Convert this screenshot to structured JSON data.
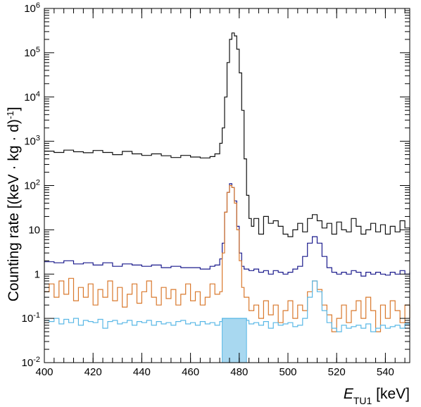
{
  "chart_data": {
    "type": "line",
    "style": "step-histogram",
    "ylabel": "Counting rate [(keV · kg · d)",
    "ylabel_exponent": "-1",
    "ylabel_close": "]",
    "xlabel_symbol": "E",
    "xlabel_subscript": "TU1",
    "xlabel_unit": " [keV]",
    "xlim": [
      400,
      550
    ],
    "ylim": [
      0.01,
      1000000
    ],
    "yscale": "log",
    "x_ticks": [
      {
        "value": 400,
        "label": "400"
      },
      {
        "value": 420,
        "label": "420"
      },
      {
        "value": 440,
        "label": "440"
      },
      {
        "value": 460,
        "label": "460"
      },
      {
        "value": 480,
        "label": "480"
      },
      {
        "value": 500,
        "label": "500"
      },
      {
        "value": 520,
        "label": "520"
      },
      {
        "value": 540,
        "label": "540"
      }
    ],
    "y_ticks": [
      {
        "value": 0.01,
        "base": "10",
        "exp": "-2"
      },
      {
        "value": 0.1,
        "base": "10",
        "exp": "-1"
      },
      {
        "value": 1,
        "base": "1",
        "exp": ""
      },
      {
        "value": 10,
        "base": "10",
        "exp": ""
      },
      {
        "value": 100,
        "base": "10",
        "exp": "2"
      },
      {
        "value": 1000,
        "base": "10",
        "exp": "3"
      },
      {
        "value": 10000,
        "base": "10",
        "exp": "4"
      },
      {
        "value": 100000,
        "base": "10",
        "exp": "5"
      },
      {
        "value": 1000000,
        "base": "10",
        "exp": "6"
      }
    ],
    "highlight_band": {
      "x_range": [
        473,
        483
      ],
      "y_value": 0.1,
      "color": "#a8d8f0"
    },
    "series": [
      {
        "color": "#111111",
        "points": [
          [
            400,
            600
          ],
          [
            404,
            560
          ],
          [
            408,
            630
          ],
          [
            412,
            580
          ],
          [
            416,
            550
          ],
          [
            420,
            620
          ],
          [
            424,
            560
          ],
          [
            428,
            500
          ],
          [
            432,
            590
          ],
          [
            436,
            520
          ],
          [
            440,
            480
          ],
          [
            444,
            520
          ],
          [
            448,
            470
          ],
          [
            452,
            430
          ],
          [
            456,
            480
          ],
          [
            460,
            440
          ],
          [
            464,
            420
          ],
          [
            468,
            450
          ],
          [
            470,
            520
          ],
          [
            472,
            900
          ],
          [
            473,
            2000
          ],
          [
            474,
            10000
          ],
          [
            475,
            60000
          ],
          [
            476,
            200000
          ],
          [
            477,
            280000
          ],
          [
            478,
            240000
          ],
          [
            479,
            120000
          ],
          [
            480,
            35000
          ],
          [
            481,
            5000
          ],
          [
            482,
            400
          ],
          [
            483,
            60
          ],
          [
            484,
            18
          ],
          [
            485,
            12
          ],
          [
            486,
            18
          ],
          [
            488,
            8
          ],
          [
            490,
            20
          ],
          [
            492,
            14
          ],
          [
            494,
            16
          ],
          [
            496,
            12
          ],
          [
            498,
            8
          ],
          [
            500,
            7
          ],
          [
            502,
            10
          ],
          [
            504,
            14
          ],
          [
            506,
            9
          ],
          [
            508,
            18
          ],
          [
            510,
            22
          ],
          [
            512,
            16
          ],
          [
            514,
            11
          ],
          [
            516,
            14
          ],
          [
            518,
            8
          ],
          [
            520,
            15
          ],
          [
            522,
            10
          ],
          [
            524,
            9
          ],
          [
            526,
            18
          ],
          [
            528,
            12
          ],
          [
            530,
            8
          ],
          [
            532,
            10
          ],
          [
            534,
            14
          ],
          [
            536,
            9
          ],
          [
            538,
            13
          ],
          [
            540,
            8
          ],
          [
            542,
            12
          ],
          [
            544,
            9
          ],
          [
            546,
            16
          ],
          [
            548,
            11
          ],
          [
            550,
            10
          ]
        ]
      },
      {
        "color": "#1a1a8c",
        "points": [
          [
            400,
            1.9
          ],
          [
            404,
            1.8
          ],
          [
            408,
            2.0
          ],
          [
            412,
            1.7
          ],
          [
            416,
            1.8
          ],
          [
            420,
            1.6
          ],
          [
            424,
            1.8
          ],
          [
            428,
            1.5
          ],
          [
            432,
            1.7
          ],
          [
            436,
            1.6
          ],
          [
            440,
            1.5
          ],
          [
            444,
            1.6
          ],
          [
            448,
            1.4
          ],
          [
            452,
            1.5
          ],
          [
            456,
            1.4
          ],
          [
            460,
            1.4
          ],
          [
            464,
            1.3
          ],
          [
            468,
            1.5
          ],
          [
            470,
            1.6
          ],
          [
            472,
            2.2
          ],
          [
            473,
            5
          ],
          [
            474,
            25
          ],
          [
            475,
            70
          ],
          [
            476,
            110
          ],
          [
            477,
            90
          ],
          [
            478,
            45
          ],
          [
            479,
            12
          ],
          [
            480,
            3
          ],
          [
            481,
            1.5
          ],
          [
            482,
            1.3
          ],
          [
            484,
            1.2
          ],
          [
            486,
            1.3
          ],
          [
            488,
            1.1
          ],
          [
            490,
            1.2
          ],
          [
            492,
            1.0
          ],
          [
            494,
            1.2
          ],
          [
            496,
            1.1
          ],
          [
            498,
            1.0
          ],
          [
            500,
            1.1
          ],
          [
            502,
            1.3
          ],
          [
            504,
            1.5
          ],
          [
            506,
            2.5
          ],
          [
            508,
            5
          ],
          [
            510,
            7
          ],
          [
            512,
            5
          ],
          [
            514,
            2.5
          ],
          [
            516,
            1.4
          ],
          [
            518,
            1.1
          ],
          [
            520,
            1.0
          ],
          [
            522,
            1.1
          ],
          [
            524,
            1.0
          ],
          [
            526,
            1.2
          ],
          [
            528,
            1.1
          ],
          [
            530,
            0.9
          ],
          [
            532,
            1.1
          ],
          [
            534,
            1.0
          ],
          [
            536,
            1.1
          ],
          [
            538,
            1.0
          ],
          [
            540,
            0.95
          ],
          [
            542,
            1.1
          ],
          [
            544,
            1.0
          ],
          [
            546,
            1.2
          ],
          [
            548,
            1.0
          ],
          [
            550,
            1.1
          ]
        ]
      },
      {
        "color": "#d9782c",
        "points": [
          [
            400,
            0.4
          ],
          [
            402,
            0.6
          ],
          [
            404,
            0.3
          ],
          [
            406,
            0.7
          ],
          [
            408,
            0.35
          ],
          [
            410,
            0.8
          ],
          [
            412,
            0.25
          ],
          [
            414,
            0.5
          ],
          [
            416,
            0.3
          ],
          [
            418,
            0.6
          ],
          [
            420,
            0.2
          ],
          [
            422,
            0.45
          ],
          [
            424,
            0.3
          ],
          [
            426,
            0.7
          ],
          [
            428,
            0.25
          ],
          [
            430,
            0.5
          ],
          [
            432,
            0.18
          ],
          [
            434,
            0.35
          ],
          [
            436,
            0.6
          ],
          [
            438,
            0.22
          ],
          [
            440,
            0.4
          ],
          [
            442,
            0.7
          ],
          [
            444,
            0.3
          ],
          [
            446,
            0.2
          ],
          [
            448,
            0.5
          ],
          [
            450,
            0.28
          ],
          [
            452,
            0.45
          ],
          [
            454,
            0.2
          ],
          [
            456,
            0.35
          ],
          [
            458,
            0.6
          ],
          [
            460,
            0.25
          ],
          [
            462,
            0.4
          ],
          [
            464,
            0.2
          ],
          [
            466,
            0.3
          ],
          [
            468,
            0.6
          ],
          [
            470,
            0.35
          ],
          [
            472,
            0.4
          ],
          [
            473,
            3
          ],
          [
            474,
            25
          ],
          [
            475,
            70
          ],
          [
            476,
            100
          ],
          [
            477,
            90
          ],
          [
            478,
            40
          ],
          [
            479,
            10
          ],
          [
            480,
            2
          ],
          [
            481,
            0.5
          ],
          [
            482,
            0.3
          ],
          [
            484,
            0.15
          ],
          [
            486,
            0.2
          ],
          [
            488,
            0.1
          ],
          [
            490,
            0.25
          ],
          [
            492,
            0.12
          ],
          [
            494,
            0.2
          ],
          [
            496,
            0.08
          ],
          [
            498,
            0.15
          ],
          [
            500,
            0.25
          ],
          [
            502,
            0.1
          ],
          [
            504,
            0.2
          ],
          [
            506,
            0.15
          ],
          [
            508,
            0.4
          ],
          [
            510,
            0.7
          ],
          [
            512,
            0.45
          ],
          [
            514,
            0.2
          ],
          [
            516,
            0.12
          ],
          [
            518,
            0.05
          ],
          [
            520,
            0.1
          ],
          [
            522,
            0.2
          ],
          [
            524,
            0.08
          ],
          [
            526,
            0.15
          ],
          [
            528,
            0.25
          ],
          [
            530,
            0.1
          ],
          [
            532,
            0.3
          ],
          [
            534,
            0.15
          ],
          [
            536,
            0.05
          ],
          [
            538,
            0.2
          ],
          [
            540,
            0.1
          ],
          [
            542,
            0.25
          ],
          [
            544,
            0.15
          ],
          [
            546,
            0.08
          ],
          [
            548,
            0.2
          ],
          [
            550,
            0.1
          ]
        ]
      },
      {
        "color": "#5ab8e6",
        "points": [
          [
            400,
            0.09
          ],
          [
            402,
            0.085
          ],
          [
            404,
            0.1
          ],
          [
            406,
            0.075
          ],
          [
            408,
            0.095
          ],
          [
            410,
            0.08
          ],
          [
            412,
            0.1
          ],
          [
            414,
            0.07
          ],
          [
            416,
            0.09
          ],
          [
            418,
            0.085
          ],
          [
            420,
            0.08
          ],
          [
            422,
            0.095
          ],
          [
            424,
            0.06
          ],
          [
            426,
            0.085
          ],
          [
            428,
            0.09
          ],
          [
            430,
            0.075
          ],
          [
            432,
            0.08
          ],
          [
            434,
            0.09
          ],
          [
            436,
            0.07
          ],
          [
            438,
            0.085
          ],
          [
            440,
            0.08
          ],
          [
            442,
            0.09
          ],
          [
            444,
            0.07
          ],
          [
            446,
            0.085
          ],
          [
            448,
            0.075
          ],
          [
            450,
            0.08
          ],
          [
            452,
            0.07
          ],
          [
            454,
            0.085
          ],
          [
            456,
            0.09
          ],
          [
            458,
            0.075
          ],
          [
            460,
            0.08
          ],
          [
            462,
            0.07
          ],
          [
            464,
            0.085
          ],
          [
            466,
            0.075
          ],
          [
            468,
            0.08
          ],
          [
            470,
            0.07
          ],
          [
            472,
            0.085
          ],
          [
            473,
            0.1
          ],
          [
            474,
            0.1
          ],
          [
            476,
            0.1
          ],
          [
            478,
            0.1
          ],
          [
            480,
            0.1
          ],
          [
            482,
            0.1
          ],
          [
            483,
            0.09
          ],
          [
            484,
            0.075
          ],
          [
            486,
            0.08
          ],
          [
            488,
            0.07
          ],
          [
            490,
            0.085
          ],
          [
            492,
            0.06
          ],
          [
            494,
            0.08
          ],
          [
            496,
            0.07
          ],
          [
            498,
            0.075
          ],
          [
            500,
            0.08
          ],
          [
            502,
            0.065
          ],
          [
            504,
            0.07
          ],
          [
            506,
            0.1
          ],
          [
            508,
            0.3
          ],
          [
            510,
            0.7
          ],
          [
            512,
            0.4
          ],
          [
            514,
            0.15
          ],
          [
            516,
            0.08
          ],
          [
            518,
            0.06
          ],
          [
            520,
            0.05
          ],
          [
            522,
            0.07
          ],
          [
            524,
            0.06
          ],
          [
            526,
            0.065
          ],
          [
            528,
            0.07
          ],
          [
            530,
            0.06
          ],
          [
            532,
            0.075
          ],
          [
            534,
            0.05
          ],
          [
            536,
            0.06
          ],
          [
            538,
            0.07
          ],
          [
            540,
            0.06
          ],
          [
            542,
            0.065
          ],
          [
            544,
            0.07
          ],
          [
            546,
            0.06
          ],
          [
            548,
            0.075
          ],
          [
            550,
            0.07
          ]
        ]
      }
    ]
  }
}
